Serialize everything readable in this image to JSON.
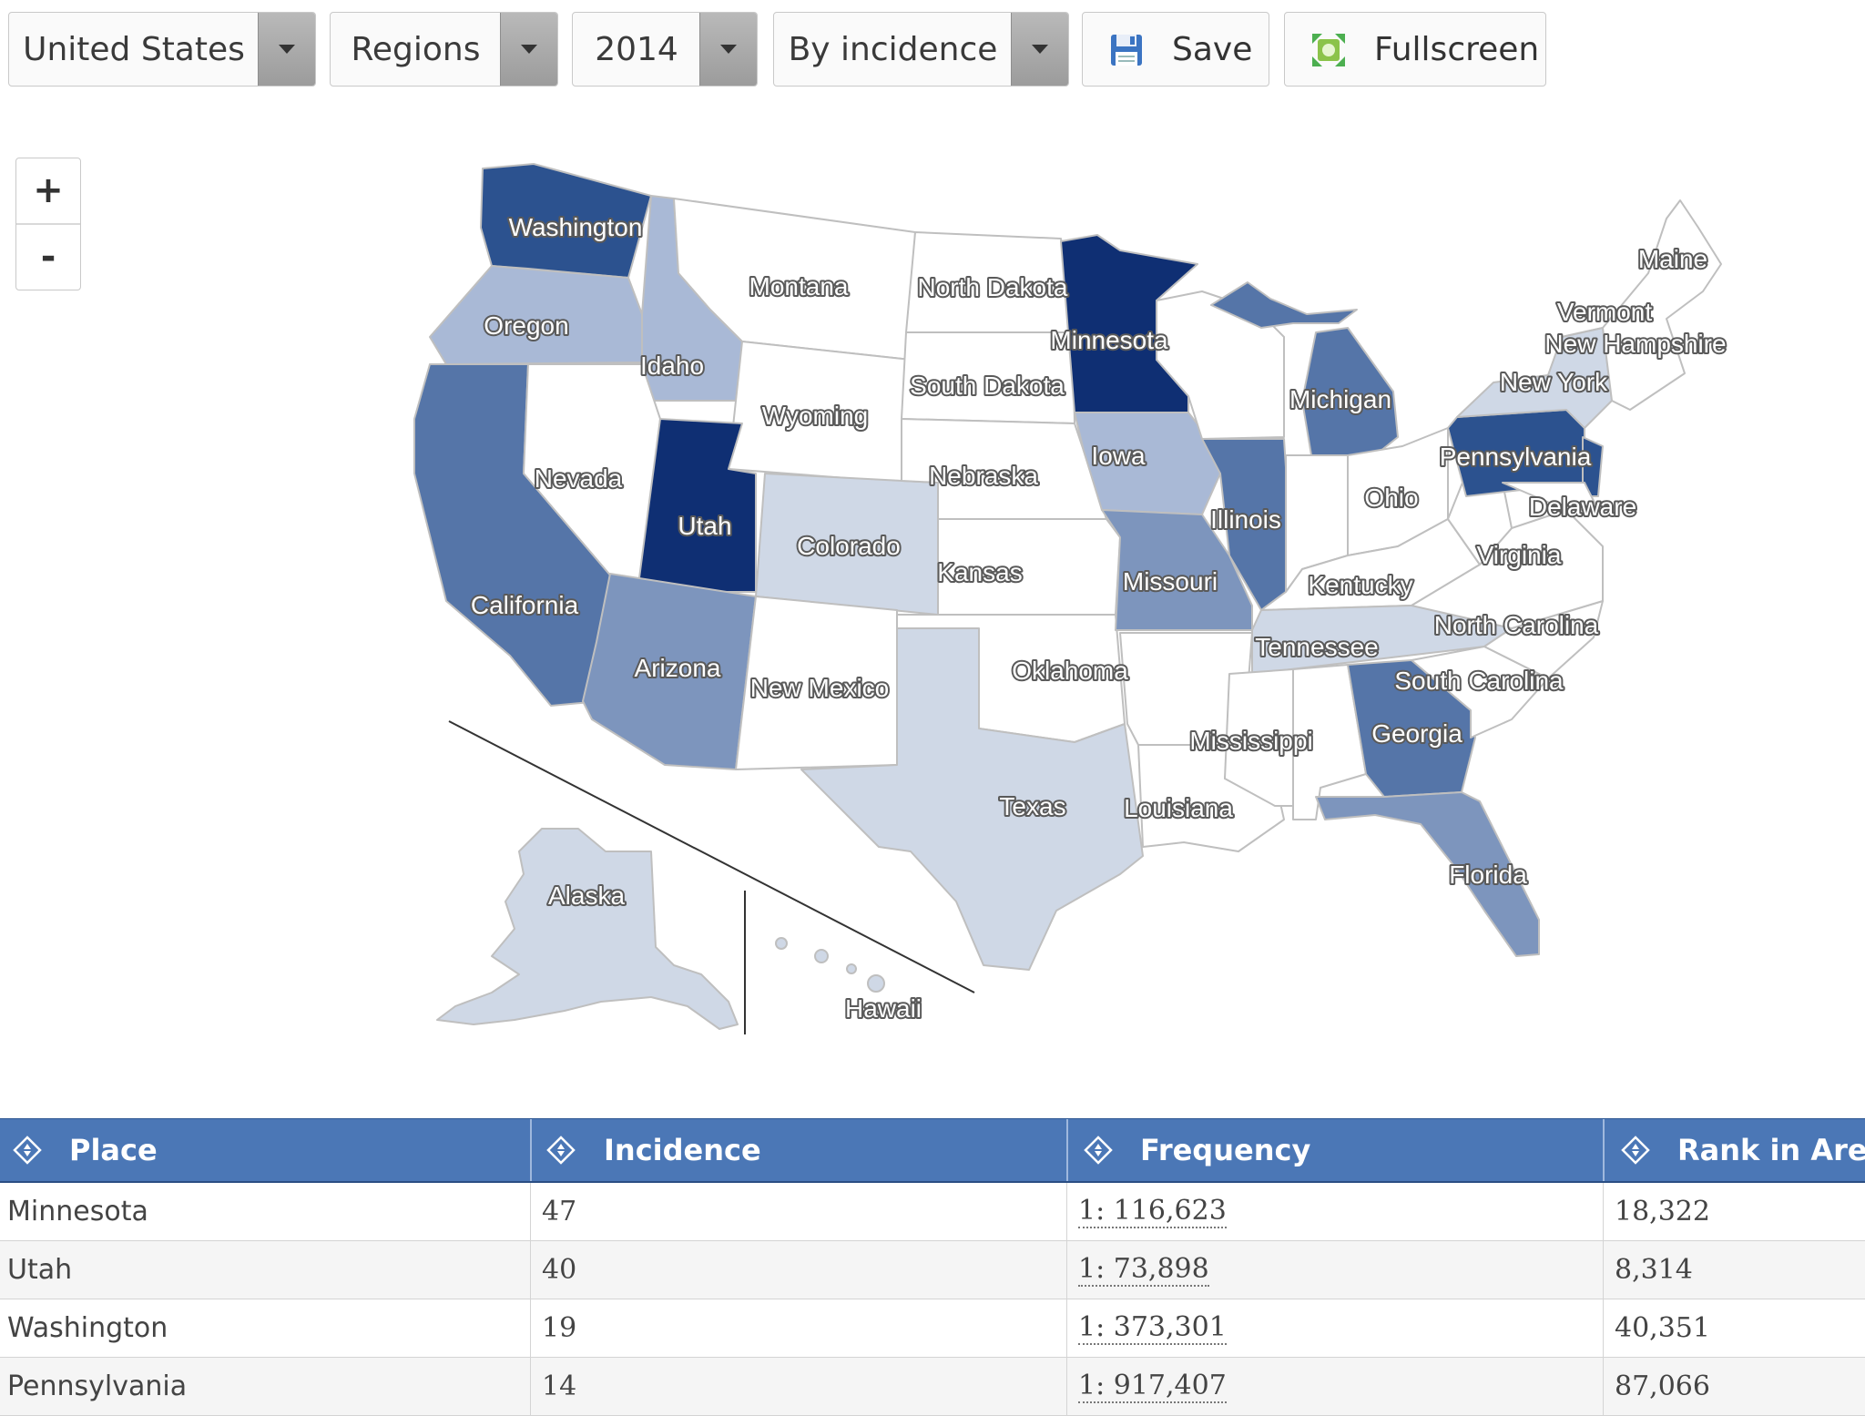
{
  "toolbar": {
    "country": "United States",
    "level": "Regions",
    "year": "2014",
    "mode": "By incidence",
    "save_label": "Save",
    "fullscreen_label": "Fullscreen"
  },
  "zoom": {
    "in_label": "+",
    "out_label": "-"
  },
  "map": {
    "states": {
      "washington": "Washington",
      "oregon": "Oregon",
      "idaho": "Idaho",
      "montana": "Montana",
      "wyoming": "Wyoming",
      "nevada": "Nevada",
      "utah": "Utah",
      "california": "California",
      "colorado": "Colorado",
      "arizona": "Arizona",
      "new_mexico": "New Mexico",
      "north_dakota": "North Dakota",
      "south_dakota": "South Dakota",
      "nebraska": "Nebraska",
      "kansas": "Kansas",
      "oklahoma": "Oklahoma",
      "texas": "Texas",
      "minnesota": "Minnesota",
      "iowa": "Iowa",
      "missouri": "Missouri",
      "illinois": "Illinois",
      "michigan": "Michigan",
      "ohio": "Ohio",
      "kentucky": "Kentucky",
      "tennessee": "Tennessee",
      "mississippi": "Mississippi",
      "louisiana": "Louisiana",
      "georgia": "Georgia",
      "florida": "Florida",
      "south_carolina": "South Carolina",
      "north_carolina": "North Carolina",
      "virginia": "Virginia",
      "delaware": "Delaware",
      "pennsylvania": "Pennsylvania",
      "new_york": "New York",
      "vermont": "Vermont",
      "new_hampshire": "New Hampshire",
      "maine": "Maine",
      "alaska": "Alaska",
      "hawaii": "Hawaii"
    },
    "colors": {
      "darkest": "#0f2f73",
      "dark": "#2c528f",
      "medium_dark": "#5575a8",
      "medium": "#7d95bd",
      "light": "#a9b9d6",
      "lightest": "#cfd8e6",
      "zero": "#ffffff",
      "border": "#bfbfbf"
    }
  },
  "table": {
    "headers": {
      "place": "Place",
      "incidence": "Incidence",
      "frequency": "Frequency",
      "rank": "Rank in Area"
    },
    "rows": [
      {
        "place": "Minnesota",
        "incidence": "47",
        "frequency": "1: 116,623",
        "rank": "18,322"
      },
      {
        "place": "Utah",
        "incidence": "40",
        "frequency": "1: 73,898",
        "rank": "8,314"
      },
      {
        "place": "Washington",
        "incidence": "19",
        "frequency": "1: 373,301",
        "rank": "40,351"
      },
      {
        "place": "Pennsylvania",
        "incidence": "14",
        "frequency": "1: 917,407",
        "rank": "87,066"
      }
    ]
  }
}
